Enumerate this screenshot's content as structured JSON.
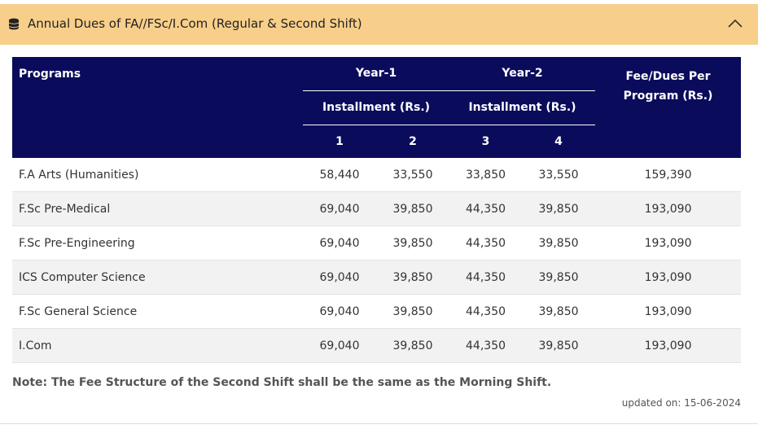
{
  "header": {
    "title": "Annual Dues of FA//FSc/I.Com (Regular & Second Shift)"
  },
  "table": {
    "columns": {
      "programs": "Programs",
      "year1": "Year-1",
      "year2": "Year-2",
      "installment1": "Installment (Rs.)",
      "installment2": "Installment (Rs.)",
      "installments": [
        "1",
        "2",
        "3",
        "4"
      ],
      "fee": "Fee/Dues Per Program (Rs.)"
    },
    "rows": [
      [
        "F.A Arts (Humanities)",
        "58,440",
        "33,550",
        "33,850",
        "33,550",
        "159,390"
      ],
      [
        "F.Sc Pre-Medical",
        "69,040",
        "39,850",
        "44,350",
        "39,850",
        "193,090"
      ],
      [
        "F.Sc Pre-Engineering",
        "69,040",
        "39,850",
        "44,350",
        "39,850",
        "193,090"
      ],
      [
        "ICS Computer Science",
        "69,040",
        "39,850",
        "44,350",
        "39,850",
        "193,090"
      ],
      [
        "F.Sc General Science",
        "69,040",
        "39,850",
        "44,350",
        "39,850",
        "193,090"
      ],
      [
        "I.Com",
        "69,040",
        "39,850",
        "44,350",
        "39,850",
        "193,090"
      ]
    ]
  },
  "note": "Note: The Fee Structure of the Second Shift shall be the same as the Morning Shift.",
  "updated": "updated on: 15-06-2024"
}
